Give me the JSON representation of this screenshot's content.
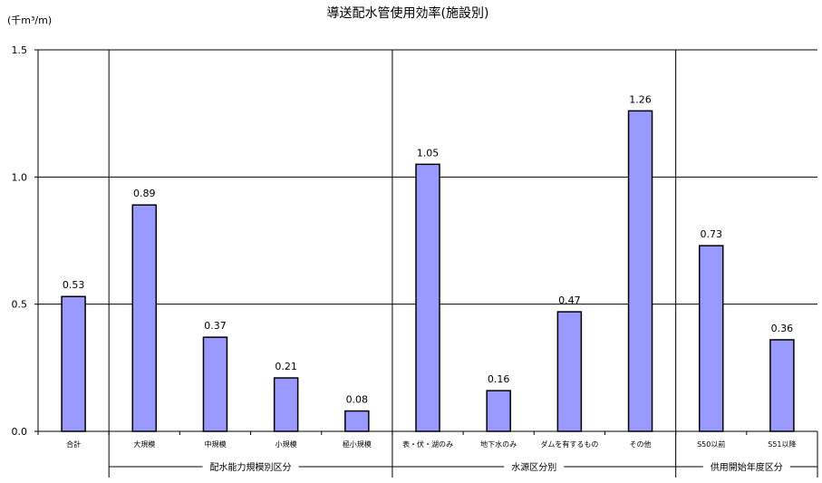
{
  "chart_data": {
    "type": "bar",
    "title": "導送配水管使用効率(施設別)",
    "ylabel": "(千m³/m)",
    "xlabel": "",
    "ylim": [
      0,
      1.5
    ],
    "yticks": [
      "0.0",
      "0.5",
      "1.0",
      "1.5"
    ],
    "grid": true,
    "bar_color": "#9999ff",
    "categories": [
      "合計",
      "大規模",
      "中規模",
      "小規模",
      "極小規模",
      "表・伏・湖のみ",
      "地下水のみ",
      "ダムを有するもの",
      "その他",
      "S50以前",
      "S51以降"
    ],
    "values": [
      0.53,
      0.89,
      0.37,
      0.21,
      0.08,
      1.05,
      0.16,
      0.47,
      1.26,
      0.73,
      0.36
    ],
    "data_labels": [
      "0.53",
      "0.89",
      "0.37",
      "0.21",
      "0.08",
      "1.05",
      "0.16",
      "0.47",
      "1.26",
      "0.73",
      "0.36"
    ],
    "groups": [
      {
        "label": "配水能力規模別区分",
        "start": 1,
        "end": 4
      },
      {
        "label": "水源区分別",
        "start": 5,
        "end": 8
      },
      {
        "label": "供用開始年度区分",
        "start": 9,
        "end": 10
      }
    ]
  }
}
